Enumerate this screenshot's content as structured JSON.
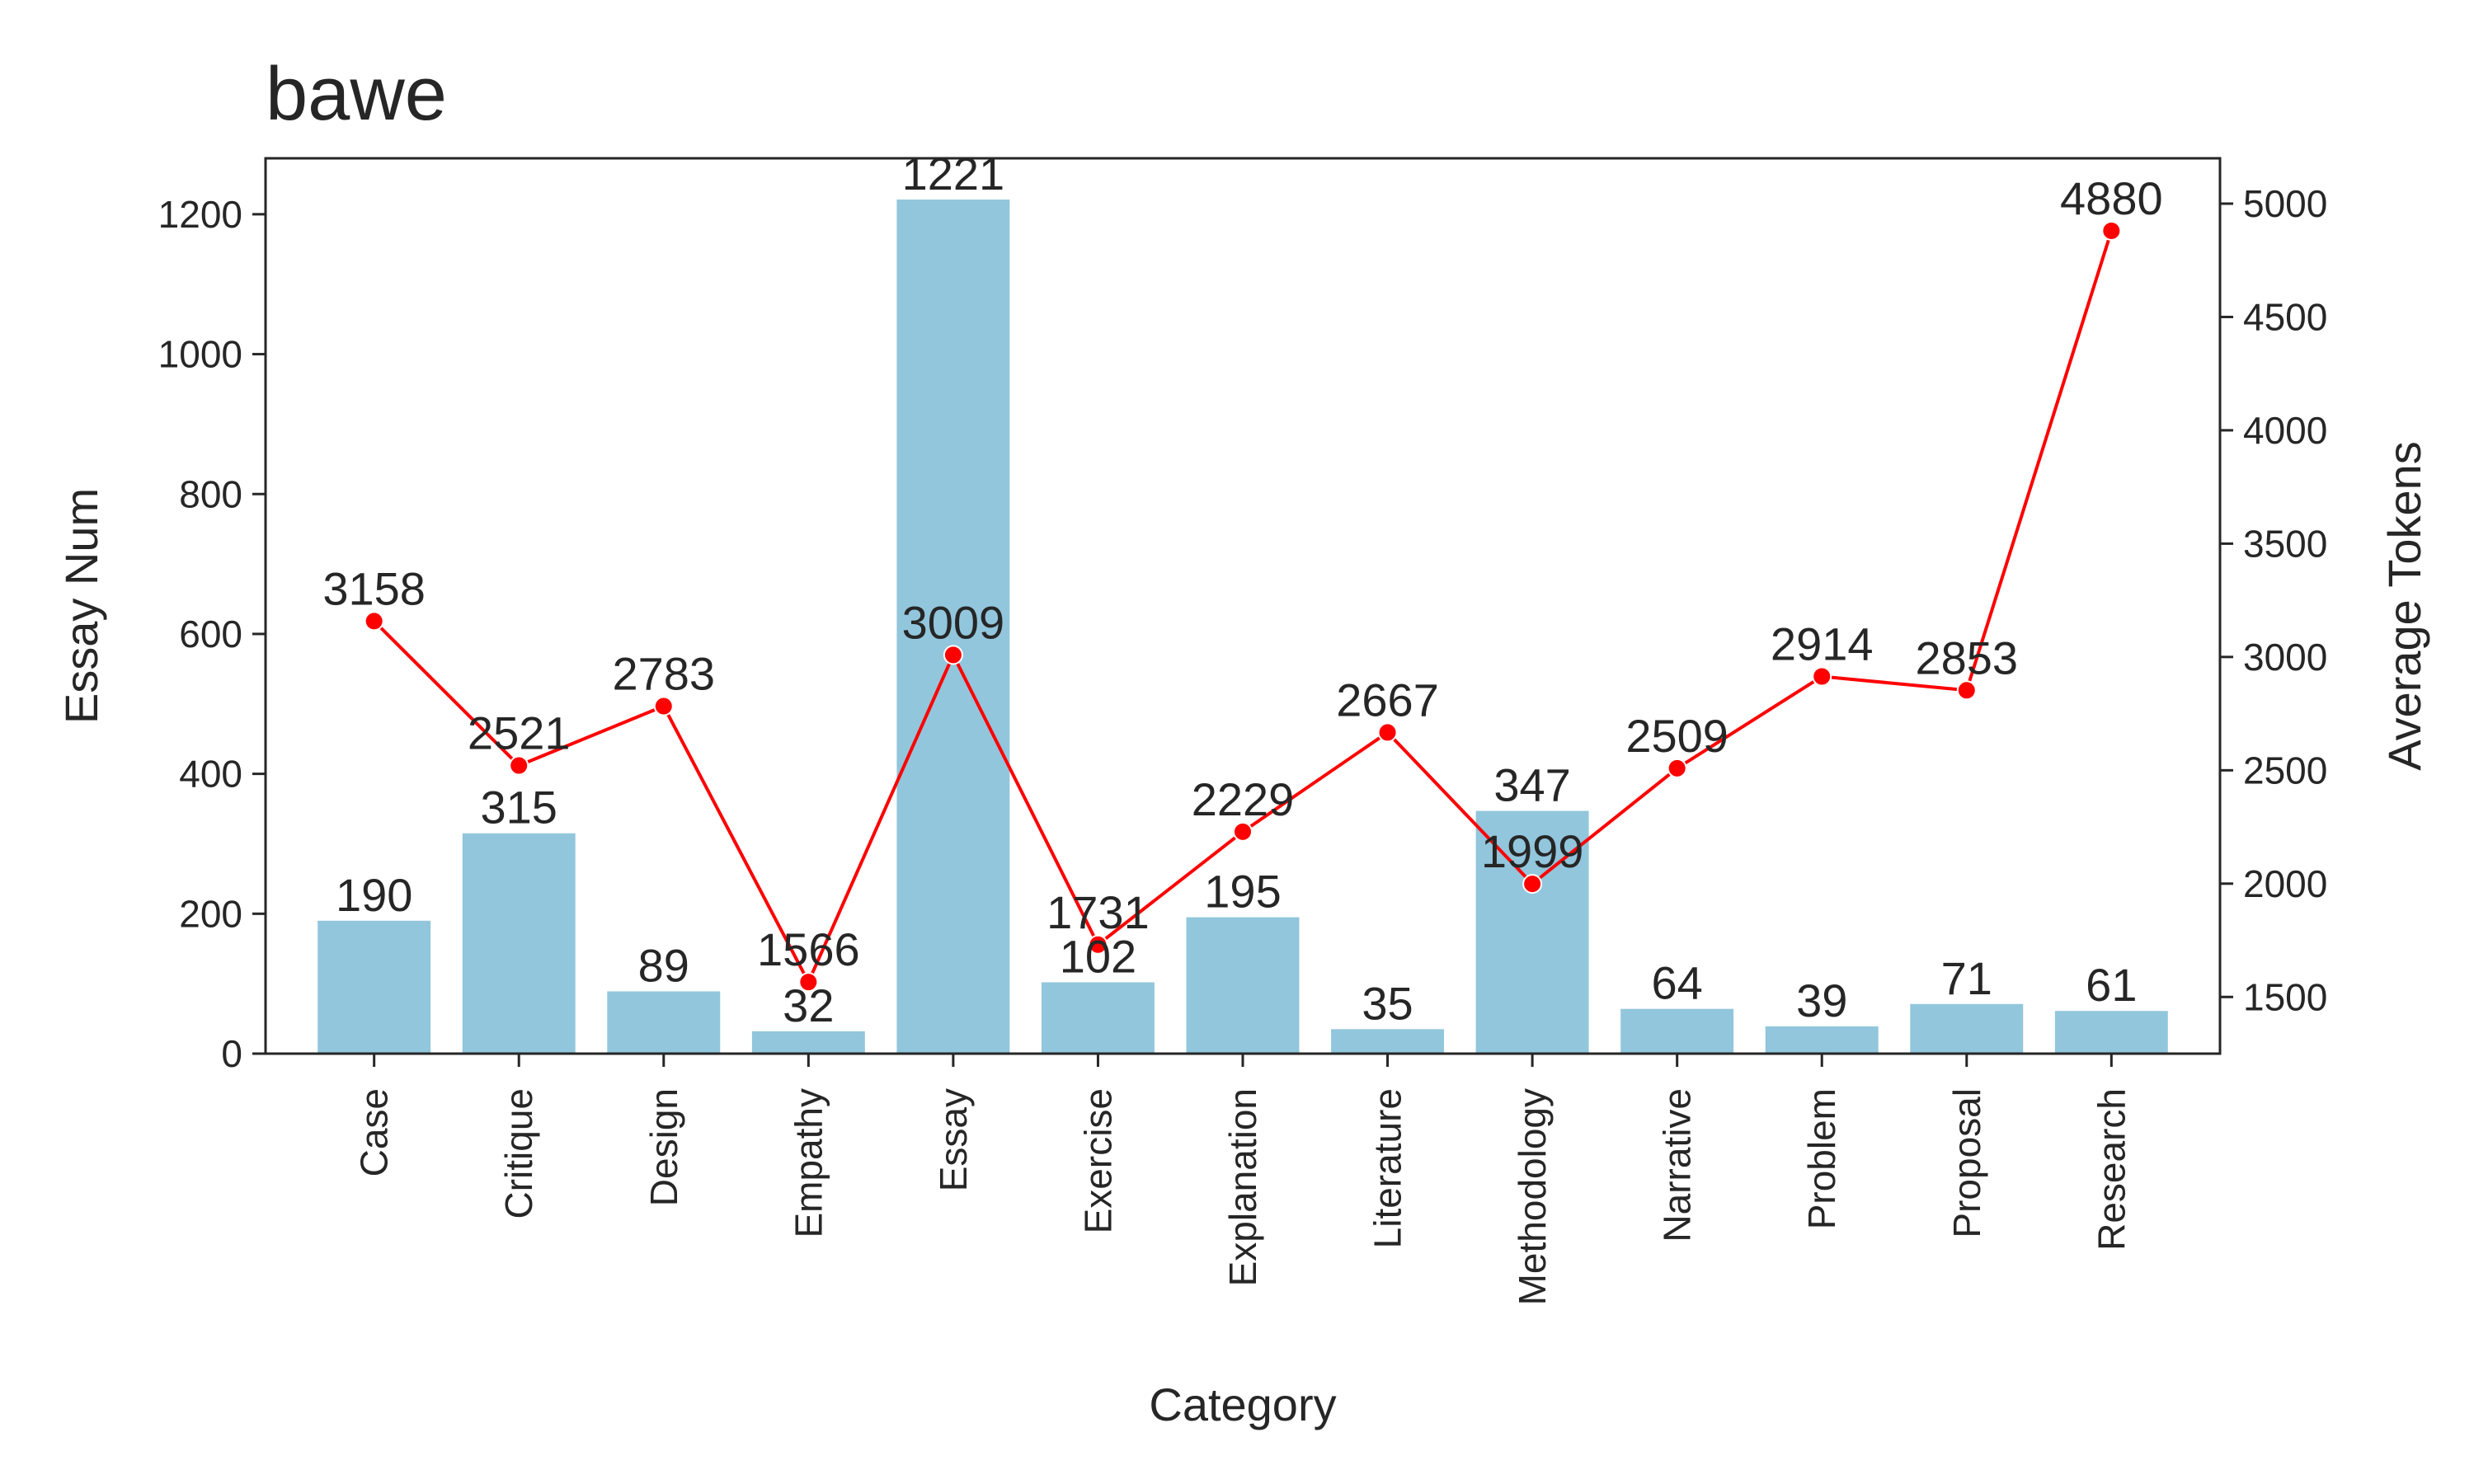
{
  "chart_data": {
    "type": "bar",
    "title": "bawe",
    "xlabel": "Category",
    "ylabel": "Essay Num",
    "y2label": "Average Tokens",
    "categories": [
      "Case",
      "Critique",
      "Design",
      "Empathy",
      "Essay",
      "Exercise",
      "Explanation",
      "Literature",
      "Methodology",
      "Narrative",
      "Problem",
      "Proposal",
      "Research"
    ],
    "series": [
      {
        "type": "bar",
        "axis": "left",
        "color": "#92c6dc",
        "values": [
          190,
          315,
          89,
          32,
          1221,
          102,
          195,
          35,
          347,
          64,
          39,
          71,
          61
        ]
      },
      {
        "type": "line",
        "axis": "right",
        "color": "#ff0000",
        "values": [
          3158,
          2521,
          2783,
          1566,
          3009,
          1731,
          2229,
          2667,
          1999,
          2509,
          2914,
          2853,
          4880
        ]
      }
    ],
    "ylim": [
      0,
      1280
    ],
    "yticks": [
      0,
      200,
      400,
      600,
      800,
      1000,
      1200
    ],
    "y2lim": [
      1250,
      5200
    ],
    "y2ticks": [
      1500,
      2000,
      2500,
      3000,
      3500,
      4000,
      4500,
      5000
    ],
    "grid": false,
    "legend": "none"
  }
}
